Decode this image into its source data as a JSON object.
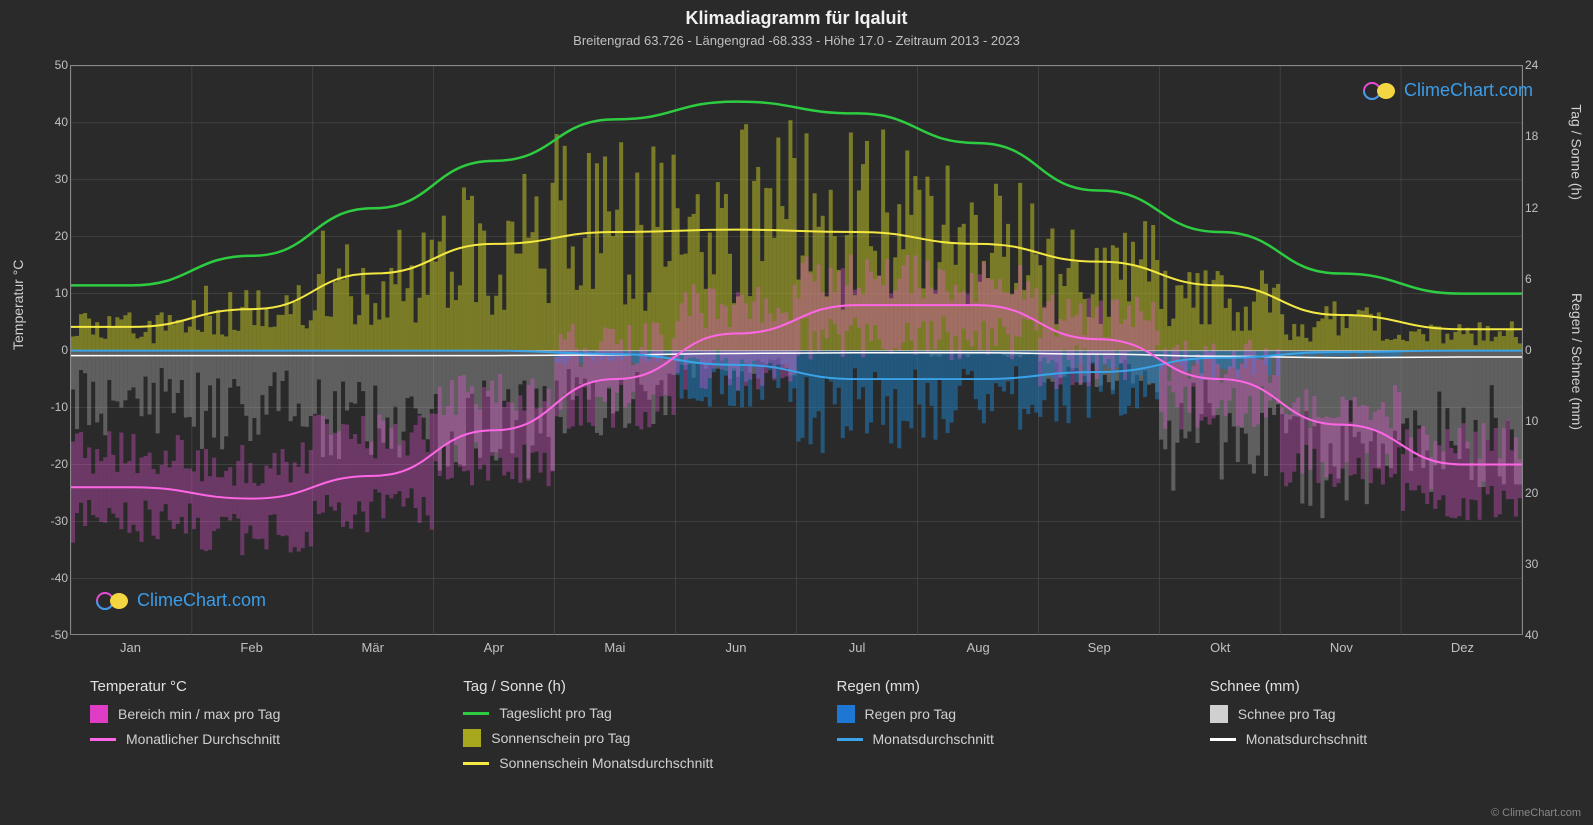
{
  "title": "Klimadiagramm für Iqaluit",
  "subtitle": "Breitengrad 63.726 - Längengrad -68.333 - Höhe 17.0 - Zeitraum 2013 - 2023",
  "watermark_text": "ClimeChart.com",
  "watermark_color": "#3b9de8",
  "copyright": "© ClimeChart.com",
  "background_color": "#2a2a2a",
  "grid_color": "#555555",
  "border_color": "#888888",
  "text_color": "#e0e0e0",
  "left_axis": {
    "label": "Temperatur °C",
    "min": -50,
    "max": 50,
    "step": 10,
    "ticks": [
      50,
      40,
      30,
      20,
      10,
      0,
      -10,
      -20,
      -30,
      -40,
      -50
    ]
  },
  "right_axis_top": {
    "label": "Tag / Sonne (h)",
    "min": 0,
    "max": 24,
    "ticks": [
      24,
      18,
      12,
      6,
      0
    ]
  },
  "right_axis_bottom": {
    "label": "Regen / Schnee (mm)",
    "min": 0,
    "max": 40,
    "ticks": [
      0,
      10,
      20,
      30,
      40
    ]
  },
  "months": [
    "Jan",
    "Feb",
    "Mär",
    "Apr",
    "Mai",
    "Jun",
    "Jul",
    "Aug",
    "Sep",
    "Okt",
    "Nov",
    "Dez"
  ],
  "series": {
    "temp_min": {
      "color": "#e855d6",
      "values": [
        -30,
        -32,
        -28,
        -20,
        -10,
        -3,
        2,
        2,
        -3,
        -10,
        -20,
        -27
      ]
    },
    "temp_max": {
      "color": "#e855d6",
      "values": [
        -18,
        -20,
        -15,
        -8,
        1,
        8,
        13,
        12,
        6,
        -2,
        -10,
        -16
      ]
    },
    "temp_avg_line": {
      "color": "#ff66e6",
      "linewidth": 2,
      "values": [
        -24,
        -26,
        -22,
        -14,
        -5,
        3,
        8,
        8,
        2,
        -5,
        -13,
        -20
      ]
    },
    "daylight": {
      "color": "#2ecc40",
      "linewidth": 2.5,
      "values": [
        5.5,
        8,
        12,
        16,
        19.5,
        21,
        20,
        17.5,
        13.5,
        10,
        6.5,
        4.8
      ]
    },
    "sunshine_bars": {
      "color": "#bcbd22",
      "opacity": 0.55,
      "values": [
        2,
        3.5,
        6,
        9,
        11,
        11.5,
        11,
        9.5,
        6.5,
        4,
        2.5,
        1.5
      ]
    },
    "sunshine_avg_line": {
      "color": "#f4e842",
      "linewidth": 2,
      "values": [
        2,
        3.5,
        6.5,
        9,
        10,
        10.2,
        10,
        9,
        7.5,
        5.5,
        3,
        1.8
      ]
    },
    "rain_bars": {
      "color": "#1f77b4",
      "opacity": 0.6,
      "values": [
        0,
        0,
        0,
        0,
        1,
        4,
        7,
        6,
        5,
        2,
        0.5,
        0
      ]
    },
    "rain_avg_line": {
      "color": "#3ba3e8",
      "linewidth": 2,
      "values": [
        0,
        0,
        0,
        0,
        0.5,
        2,
        4,
        4,
        3,
        1,
        0.2,
        0
      ]
    },
    "snow_bars": {
      "color": "#b0b0b0",
      "opacity": 0.4,
      "values": [
        6,
        7,
        8,
        9,
        6,
        2,
        0,
        0.5,
        3,
        10,
        12,
        10
      ]
    },
    "snow_avg_line": {
      "color": "#ffffff",
      "linewidth": 1.5,
      "values": [
        0.7,
        0.7,
        0.7,
        0.7,
        0.6,
        0.4,
        0.3,
        0.3,
        0.5,
        0.8,
        1,
        0.9
      ]
    }
  },
  "legend": {
    "col1": {
      "title": "Temperatur °C",
      "items": [
        {
          "type": "swatch",
          "color": "#e03dc7",
          "label": "Bereich min / max pro Tag"
        },
        {
          "type": "line",
          "color": "#ff66e6",
          "label": "Monatlicher Durchschnitt"
        }
      ]
    },
    "col2": {
      "title": "Tag / Sonne (h)",
      "items": [
        {
          "type": "line",
          "color": "#2ecc40",
          "label": "Tageslicht pro Tag"
        },
        {
          "type": "swatch",
          "color": "#a8a81e",
          "label": "Sonnenschein pro Tag"
        },
        {
          "type": "line",
          "color": "#f4e842",
          "label": "Sonnenschein Monatsdurchschnitt"
        }
      ]
    },
    "col3": {
      "title": "Regen (mm)",
      "items": [
        {
          "type": "swatch",
          "color": "#1f77d4",
          "label": "Regen pro Tag"
        },
        {
          "type": "line",
          "color": "#3ba3e8",
          "label": "Monatsdurchschnitt"
        }
      ]
    },
    "col4": {
      "title": "Schnee (mm)",
      "items": [
        {
          "type": "swatch",
          "color": "#d0d0d0",
          "label": "Schnee pro Tag"
        },
        {
          "type": "line",
          "color": "#ffffff",
          "label": "Monatsdurchschnitt"
        }
      ]
    }
  }
}
